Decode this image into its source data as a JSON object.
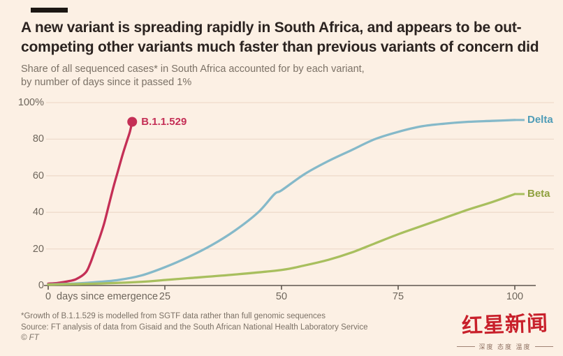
{
  "colors": {
    "background": "#fcf0e4",
    "kicker_bar": "#1c1713",
    "grid": "#eedbcb",
    "axis": "#5e564e",
    "b11529_line": "#c42f56",
    "b11529_label": "#c42f56",
    "delta_line": "#85b9c9",
    "delta_label": "#4f9cb7",
    "beta_line": "#a8bf5e",
    "beta_label": "#8fa03f"
  },
  "header": {
    "title_line1": "A new variant is spreading rapidly in South Africa, and appears to be out-",
    "title_line2": "competing other variants much faster than previous variants of concern did",
    "subtitle_line1": "Share of all sequenced cases* in South Africa accounted for by each variant,",
    "subtitle_line2": "by number of days since it passed 1%"
  },
  "chart_data": {
    "type": "line",
    "title": "A new variant is spreading rapidly in South Africa, and appears to be out-competing other variants much faster than previous variants of concern did",
    "subtitle": "Share of all sequenced cases* in South Africa accounted for by each variant, by number of days since it passed 1%",
    "xlabel": "days since emergence",
    "ylabel": "",
    "xlim": [
      0,
      100
    ],
    "ylim": [
      0,
      100
    ],
    "grid": true,
    "legend_position": "end-of-line labels",
    "x_tick_values": [
      0,
      25,
      50,
      75,
      100
    ],
    "x_tick_labels": [
      "0",
      "25",
      "50",
      "75",
      "100"
    ],
    "y_tick_values": [
      0,
      20,
      40,
      60,
      80,
      100
    ],
    "y_tick_labels": [
      "0",
      "20",
      "40",
      "60",
      "80",
      "100%"
    ],
    "series": [
      {
        "name": "B.1.1.529",
        "color": "#c42f56",
        "label_color": "#c42f56",
        "marker_end": true,
        "leader_dash": false,
        "points": [
          [
            0,
            1
          ],
          [
            2,
            1.4
          ],
          [
            4,
            2.2
          ],
          [
            6,
            3.5
          ],
          [
            8,
            7
          ],
          [
            9,
            12
          ],
          [
            10,
            19
          ],
          [
            11,
            26
          ],
          [
            12,
            34
          ],
          [
            13,
            44
          ],
          [
            14,
            54
          ],
          [
            15,
            63
          ],
          [
            16,
            72
          ],
          [
            17,
            80
          ],
          [
            17.5,
            84
          ],
          [
            18,
            89.5
          ]
        ]
      },
      {
        "name": "Delta",
        "color": "#85b9c9",
        "label_color": "#4f9cb7",
        "marker_end": false,
        "leader_dash": true,
        "points": [
          [
            0,
            0.6
          ],
          [
            5,
            1
          ],
          [
            10,
            1.8
          ],
          [
            15,
            3
          ],
          [
            20,
            5.5
          ],
          [
            25,
            10
          ],
          [
            30,
            15.5
          ],
          [
            35,
            22
          ],
          [
            40,
            30
          ],
          [
            45,
            40
          ],
          [
            48.5,
            50
          ],
          [
            50,
            52
          ],
          [
            55,
            61
          ],
          [
            60,
            68
          ],
          [
            65,
            74
          ],
          [
            70,
            80
          ],
          [
            75,
            84
          ],
          [
            80,
            87
          ],
          [
            85,
            88.5
          ],
          [
            90,
            89.5
          ],
          [
            95,
            90
          ],
          [
            100,
            90.5
          ]
        ]
      },
      {
        "name": "Beta",
        "color": "#a8bf5e",
        "label_color": "#8fa03f",
        "marker_end": false,
        "leader_dash": true,
        "points": [
          [
            0,
            0.5
          ],
          [
            10,
            1
          ],
          [
            20,
            2
          ],
          [
            25,
            3
          ],
          [
            30,
            4
          ],
          [
            40,
            6
          ],
          [
            50,
            8.5
          ],
          [
            55,
            11
          ],
          [
            60,
            14
          ],
          [
            65,
            18
          ],
          [
            70,
            23
          ],
          [
            75,
            28
          ],
          [
            80,
            32.5
          ],
          [
            85,
            37
          ],
          [
            90,
            41.5
          ],
          [
            95,
            45.5
          ],
          [
            100,
            50
          ]
        ]
      }
    ]
  },
  "footnotes": {
    "note": "*Growth of B.1.1.529 is modelled from SGTF data rather than full genomic sequences",
    "source": "Source: FT analysis of data from Gisaid and the South African National Health Laboratory Service",
    "copyright": "© FT"
  },
  "watermark": {
    "logo_text": "红星新闻",
    "tagline": "深度 态度 温度"
  }
}
